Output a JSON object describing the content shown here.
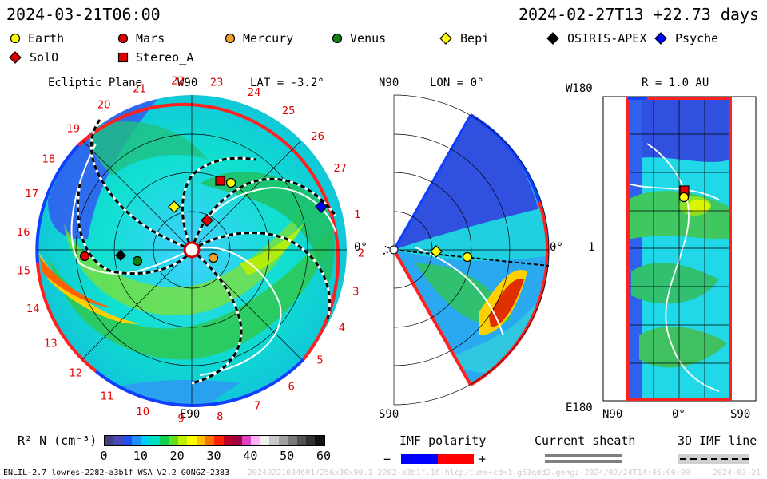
{
  "header": {
    "sim_time": "2024-03-21T06:00",
    "ref_time": "2024-02-27T13 +22.73 days"
  },
  "legend": [
    {
      "label": "Earth",
      "shape": "circle",
      "color": "#ffff00"
    },
    {
      "label": "Mars",
      "shape": "circle",
      "color": "#e00000"
    },
    {
      "label": "Mercury",
      "shape": "circle",
      "color": "#f0a030"
    },
    {
      "label": "Venus",
      "shape": "circle",
      "color": "#108010"
    },
    {
      "label": "Bepi",
      "shape": "diamond",
      "color": "#ffff00"
    },
    {
      "label": "OSIRIS-APEX",
      "shape": "diamond",
      "color": "#000000"
    },
    {
      "label": "Psyche",
      "shape": "diamond",
      "color": "#0000ff"
    },
    {
      "label": "SolO",
      "shape": "diamond",
      "color": "#e00000"
    },
    {
      "label": "Stereo_A",
      "shape": "square",
      "color": "#e00000"
    }
  ],
  "panel_ecliptic": {
    "title": "Ecliptic Plane",
    "top_label": "W90",
    "lat_label": "LAT = -3.2°",
    "bottom_label": "E90",
    "right_label": "0°",
    "day_ticks": [
      "1",
      "2",
      "3",
      "4",
      "5",
      "6",
      "7",
      "8",
      "9",
      "10",
      "11",
      "12",
      "13",
      "14",
      "15",
      "16",
      "17",
      "18",
      "19",
      "20",
      "21",
      "22",
      "23",
      "24",
      "25",
      "26",
      "27"
    ]
  },
  "panel_meridional": {
    "top_label": "N90",
    "lon_label": "LON = 0°",
    "bottom_label": "S90",
    "right_label": "0°"
  },
  "panel_latlon": {
    "title": "R = 1.0 AU",
    "top_left": "W180",
    "mid_left": "1",
    "bottom_left": "E180",
    "x_labels": [
      "N90",
      "0°",
      "S90"
    ]
  },
  "colorbar": {
    "label": "R² N (cm⁻³)",
    "ticks": [
      "0",
      "10",
      "20",
      "30",
      "40",
      "50",
      "60"
    ],
    "colors": [
      "#404080",
      "#4848b8",
      "#2050f0",
      "#2090ff",
      "#00d0f0",
      "#00e0c0",
      "#10d050",
      "#60e020",
      "#c0f000",
      "#ffff00",
      "#ffc000",
      "#ff7000",
      "#ff2000",
      "#c00020",
      "#a00040",
      "#e040c0",
      "#ffb0f0",
      "#f0f0f0",
      "#c8c8c8",
      "#a0a0a0",
      "#787878",
      "#505050",
      "#303030",
      "#101010"
    ]
  },
  "imf_polarity": {
    "title": "IMF polarity",
    "minus": "−",
    "plus": "+",
    "neg_color": "#0000ff",
    "pos_color": "#ff0000"
  },
  "current_sheath": {
    "title": "Current sheath"
  },
  "imf_line": {
    "title": "3D IMF line"
  },
  "footer": {
    "model_info": "ENLIL-2.7 lowres-2282-a3b1f WSA_V2.2 GONGZ-2383",
    "run_info": "20240221084601/256x30x90.1 2282-a3b1f.16-hlcp/tume+cd=1.g53qdd2.gongz-2024/02/24T14:46:00:00",
    "run_date": "2024-03-21"
  }
}
